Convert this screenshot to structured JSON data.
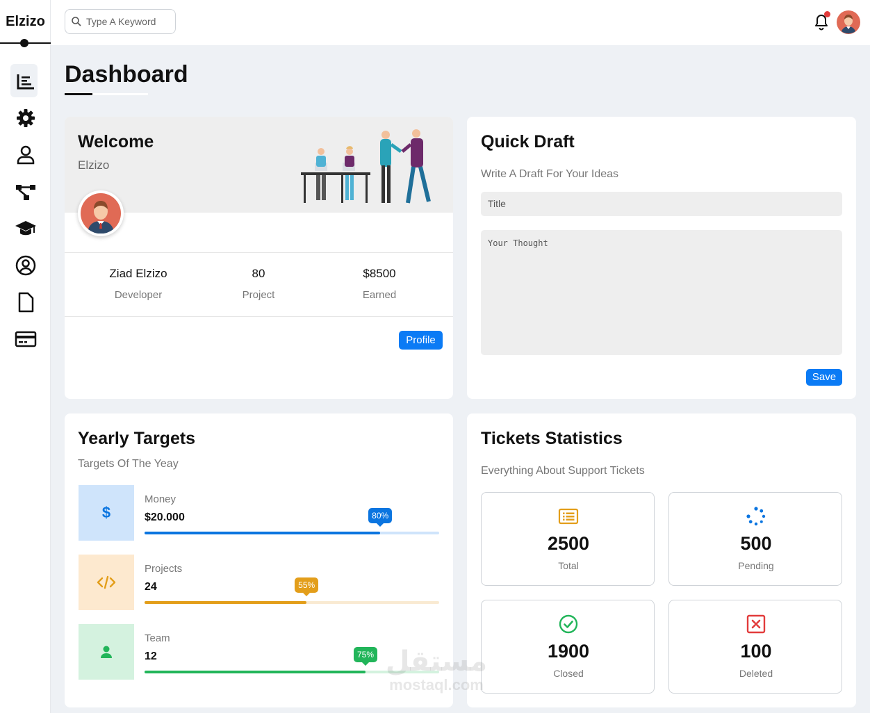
{
  "brand": "Elzizo",
  "search": {
    "placeholder": "Type A Keyword"
  },
  "nav": [
    "dashboard-icon",
    "settings-icon",
    "profile-icon",
    "projects-icon",
    "courses-icon",
    "friends-icon",
    "files-icon",
    "plans-icon"
  ],
  "page_title": "Dashboard",
  "welcome": {
    "title": "Welcome",
    "subtitle": "Elzizo",
    "stats": [
      {
        "value": "Ziad Elzizo",
        "label": "Developer"
      },
      {
        "value": "80",
        "label": "Project"
      },
      {
        "value": "$8500",
        "label": "Earned"
      }
    ],
    "button": "Profile"
  },
  "draft": {
    "title": "Quick Draft",
    "subtitle": "Write A Draft For Your Ideas",
    "title_placeholder": "Title",
    "thought_placeholder": "Your Thought",
    "button": "Save"
  },
  "targets": {
    "title": "Yearly Targets",
    "subtitle": "Targets Of The Yeay",
    "rows": [
      {
        "label": "Money",
        "value": "$20.000",
        "percent": 80,
        "badge": "80%",
        "icon": "dollar-icon",
        "color": "#0b75e0",
        "light": "#cfe4fb",
        "bg": "#cfe4fb"
      },
      {
        "label": "Projects",
        "value": "24",
        "percent": 55,
        "badge": "55%",
        "icon": "code-icon",
        "color": "#e39e1a",
        "light": "#f9ead2",
        "bg": "#fde9cf"
      },
      {
        "label": "Team",
        "value": "12",
        "percent": 75,
        "badge": "75%",
        "icon": "user-icon",
        "color": "#22b55a",
        "light": "#d4f2df",
        "bg": "#d4f2df"
      }
    ]
  },
  "tickets": {
    "title": "Tickets Statistics",
    "subtitle": "Everything About Support Tickets",
    "items": [
      {
        "value": "2500",
        "label": "Total",
        "icon": "list-icon",
        "color": "#e39e1a"
      },
      {
        "value": "500",
        "label": "Pending",
        "icon": "spinner-icon",
        "color": "#0b75e0"
      },
      {
        "value": "1900",
        "label": "Closed",
        "icon": "check-circle-icon",
        "color": "#22b55a"
      },
      {
        "value": "100",
        "label": "Deleted",
        "icon": "x-square-icon",
        "color": "#e23b3b"
      }
    ]
  },
  "watermark": {
    "arabic": "مستقل",
    "latin": "mostaql.com"
  }
}
